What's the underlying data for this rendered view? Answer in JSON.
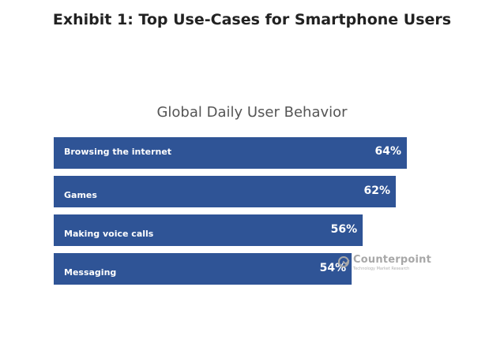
{
  "exhibit_title": "Exhibit 1: Top Use-Cases for Smartphone Users",
  "chart_data": {
    "type": "bar",
    "orientation": "horizontal",
    "title": "Global Daily User Behavior",
    "xlabel": "",
    "ylabel": "",
    "categories": [
      "Browsing the internet",
      "Games",
      "Making voice calls",
      "Messaging"
    ],
    "values": [
      64,
      62,
      56,
      54
    ],
    "value_labels": [
      "64%",
      "62%",
      "56%",
      "54%"
    ],
    "value_unit": "%",
    "grid": false,
    "legend": "none",
    "colors": {
      "bar": "#2f5496",
      "label": "#ffffff"
    }
  },
  "watermark": {
    "name": "Counterpoint",
    "tagline": "Technology Market Research"
  }
}
